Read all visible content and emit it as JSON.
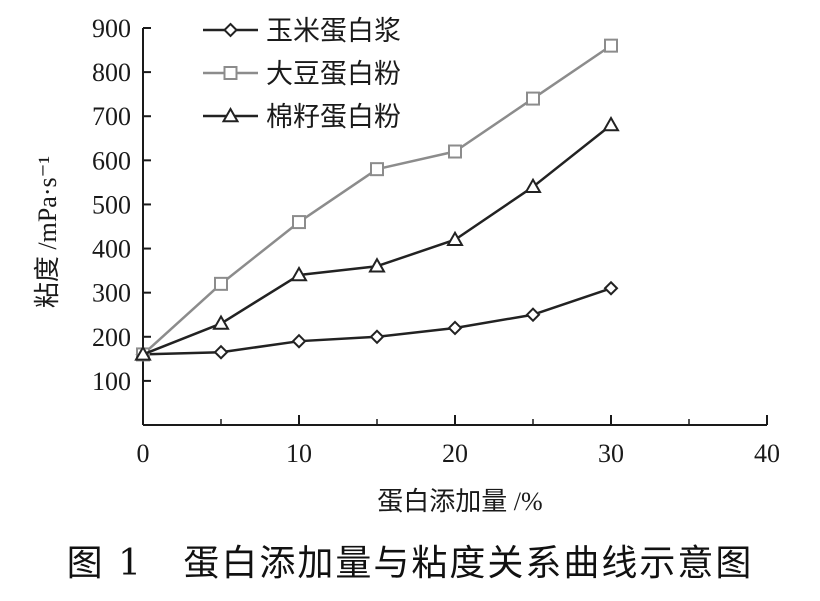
{
  "figure": {
    "caption": "图 1   蛋白添加量与粘度关系曲线示意图"
  },
  "chart_data": {
    "type": "line",
    "title": "",
    "xlabel": "蛋白添加量 /%",
    "ylabel": "粘度 /mPa·s⁻¹",
    "xlim": [
      0,
      40
    ],
    "ylim": [
      0,
      900
    ],
    "xticks": [
      0,
      10,
      20,
      30,
      40
    ],
    "yticks": [
      100,
      200,
      300,
      400,
      500,
      600,
      700,
      800,
      900
    ],
    "grid": false,
    "legend_position": "top-left",
    "x": [
      0,
      5,
      10,
      15,
      20,
      25,
      30
    ],
    "series": [
      {
        "name": "玉米蛋白浆",
        "marker": "diamond",
        "color": "#222222",
        "values": [
          160,
          165,
          190,
          200,
          220,
          250,
          310
        ]
      },
      {
        "name": "大豆蛋白粉",
        "marker": "square",
        "color": "#8c8c8c",
        "values": [
          160,
          320,
          460,
          580,
          620,
          740,
          860
        ]
      },
      {
        "name": "棉籽蛋白粉",
        "marker": "triangle",
        "color": "#222222",
        "values": [
          160,
          230,
          340,
          360,
          420,
          540,
          680
        ]
      }
    ]
  }
}
